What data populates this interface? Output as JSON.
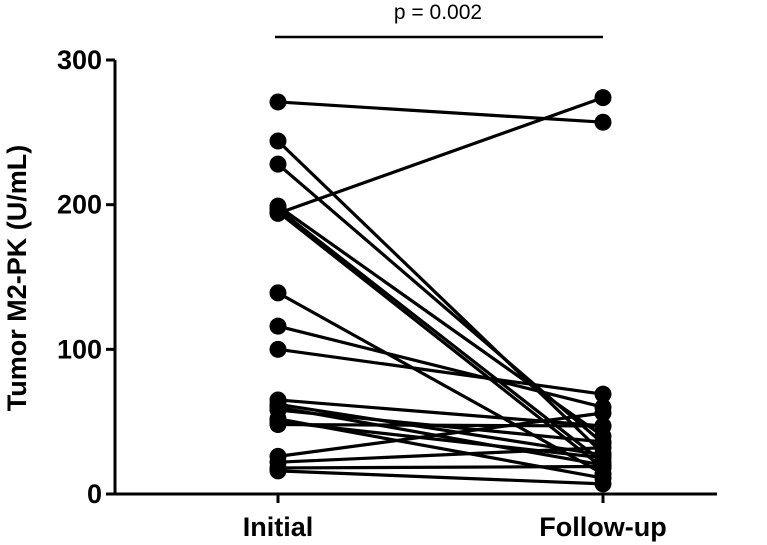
{
  "chart_data": {
    "type": "line",
    "title": "",
    "xlabel": "",
    "ylabel": "Tumor  M2-PK (U/mL)",
    "categories": [
      "Initial",
      "Follow-up"
    ],
    "ylim": [
      0,
      300
    ],
    "yticks": [
      0,
      100,
      200,
      300
    ],
    "grid": false,
    "annotation": {
      "text": "p = 0.002",
      "span": [
        "Initial",
        "Follow-up"
      ]
    },
    "pairs": [
      [
        271,
        257
      ],
      [
        194,
        274
      ],
      [
        244,
        28
      ],
      [
        228,
        35
      ],
      [
        199,
        40
      ],
      [
        197,
        22
      ],
      [
        195,
        18
      ],
      [
        139,
        14
      ],
      [
        116,
        60
      ],
      [
        100,
        69
      ],
      [
        65,
        47
      ],
      [
        62,
        27
      ],
      [
        60,
        20
      ],
      [
        58,
        36
      ],
      [
        52,
        11
      ],
      [
        50,
        25
      ],
      [
        48,
        47
      ],
      [
        26,
        56
      ],
      [
        22,
        32
      ],
      [
        18,
        19
      ],
      [
        16,
        7
      ]
    ]
  }
}
